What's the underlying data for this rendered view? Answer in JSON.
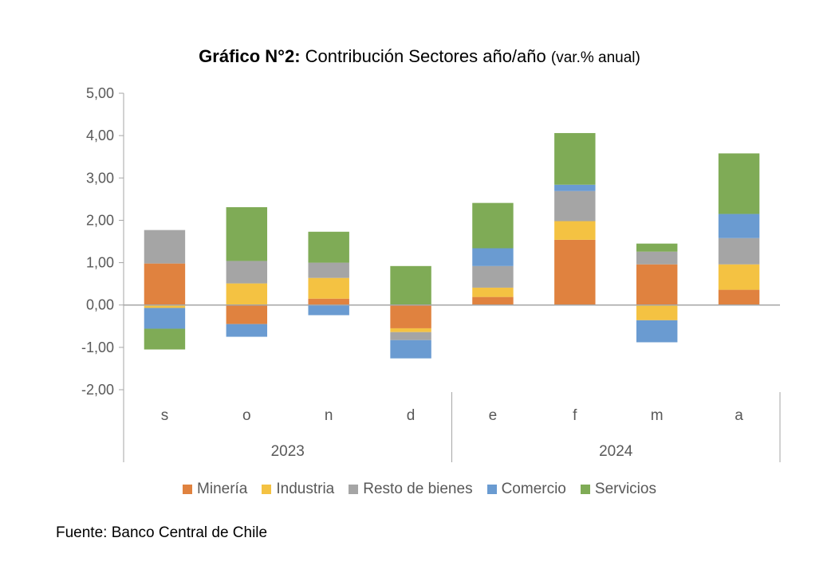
{
  "chart_data": {
    "type": "bar",
    "stacked": true,
    "title_bold": "Gráfico N°2:",
    "title_main": "Contribución Sectores año/año",
    "title_suffix": "(var.% anual)",
    "xlabel": "",
    "ylabel": "",
    "ylim": [
      -2,
      5
    ],
    "yticks": [
      5,
      4,
      3,
      2,
      1,
      0,
      -1,
      -2
    ],
    "ytick_labels": [
      "5,00",
      "4,00",
      "3,00",
      "2,00",
      "1,00",
      "0,00",
      "-1,00",
      "-2,00"
    ],
    "categories": [
      "s",
      "o",
      "n",
      "d",
      "e",
      "f",
      "m",
      "a"
    ],
    "groups": [
      {
        "label": "2023",
        "categories": [
          "s",
          "o",
          "n",
          "d"
        ]
      },
      {
        "label": "2024",
        "categories": [
          "e",
          "f",
          "m",
          "a"
        ]
      }
    ],
    "series": [
      {
        "name": "Minería",
        "color": "#E0823F",
        "values": [
          0.98,
          -0.45,
          0.15,
          -0.55,
          0.19,
          1.54,
          0.96,
          0.36
        ]
      },
      {
        "name": "Industria",
        "color": "#F4C242",
        "values": [
          -0.07,
          0.51,
          0.49,
          -0.09,
          0.22,
          0.44,
          -0.36,
          0.6
        ]
      },
      {
        "name": "Resto de bienes",
        "color": "#A5A5A5",
        "values": [
          0.79,
          0.53,
          0.36,
          -0.19,
          0.51,
          0.71,
          0.3,
          0.62
        ]
      },
      {
        "name": "Comercio",
        "color": "#6A9BD1",
        "values": [
          -0.49,
          -0.3,
          -0.24,
          -0.43,
          0.42,
          0.15,
          -0.52,
          0.57
        ]
      },
      {
        "name": "Servicios",
        "color": "#7FAB56",
        "values": [
          -0.49,
          1.27,
          0.73,
          0.92,
          1.07,
          1.22,
          0.19,
          1.43
        ]
      }
    ],
    "legend_position": "bottom",
    "grid": false
  },
  "source": "Fuente: Banco Central de Chile"
}
